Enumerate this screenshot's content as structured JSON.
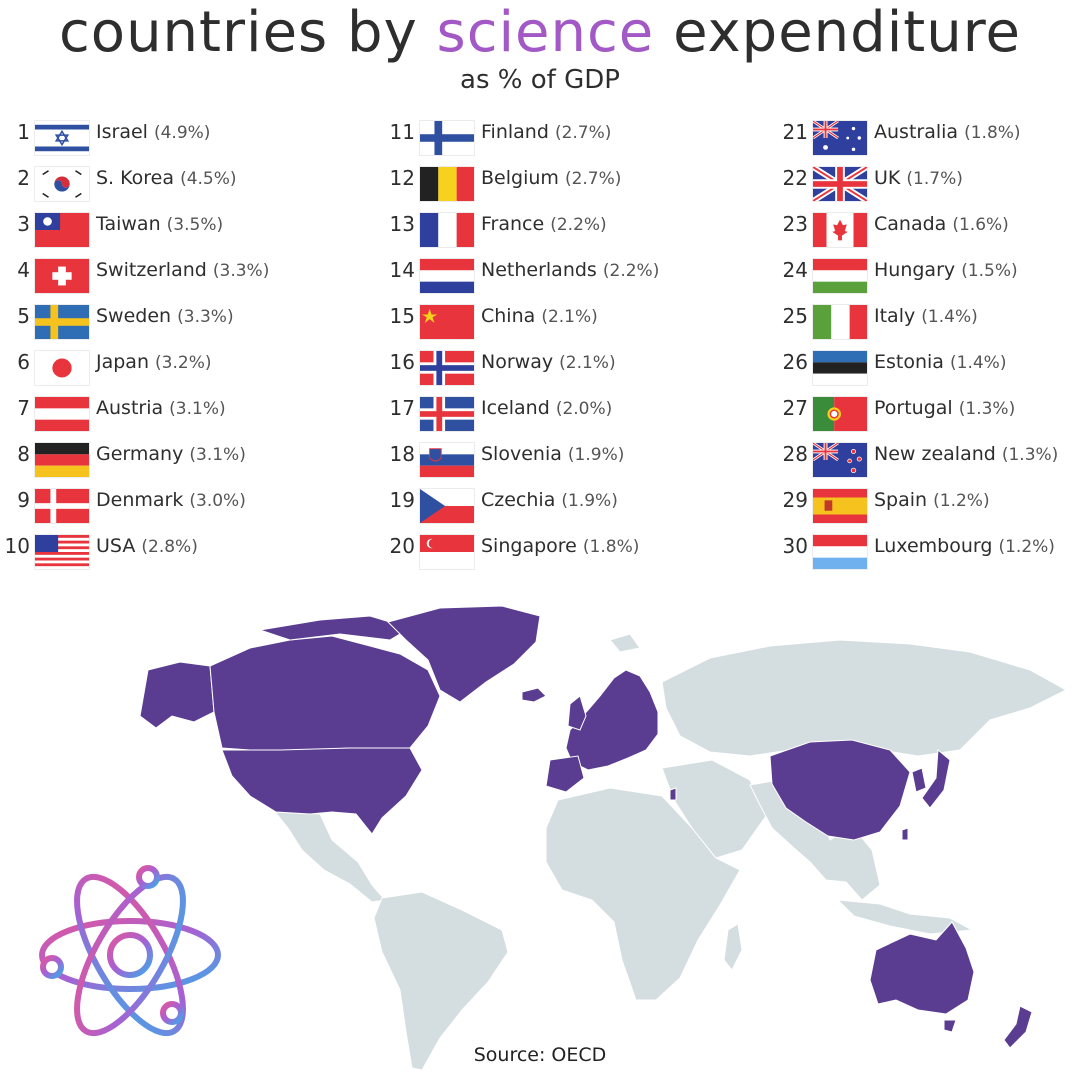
{
  "title": {
    "part1": "countries by",
    "accent": "science",
    "part2": "expenditure"
  },
  "subtitle": "as % of GDP",
  "source": "Source: OECD",
  "colors": {
    "accent": "#a259c6",
    "highlight": "#5a3d91",
    "land": "#d4dde0"
  },
  "columns": [
    [
      {
        "rank": "1",
        "country": "Israel",
        "pct": "(4.9%)",
        "flag": "israel"
      },
      {
        "rank": "2",
        "country": "S. Korea",
        "pct": "(4.5%)",
        "flag": "korea"
      },
      {
        "rank": "3",
        "country": "Taiwan",
        "pct": "(3.5%)",
        "flag": "taiwan"
      },
      {
        "rank": "4",
        "country": "Switzerland",
        "pct": "(3.3%)",
        "flag": "switzerland"
      },
      {
        "rank": "5",
        "country": "Sweden",
        "pct": "(3.3%)",
        "flag": "sweden"
      },
      {
        "rank": "6",
        "country": "Japan",
        "pct": "(3.2%)",
        "flag": "japan"
      },
      {
        "rank": "7",
        "country": "Austria",
        "pct": "(3.1%)",
        "flag": "austria"
      },
      {
        "rank": "8",
        "country": "Germany",
        "pct": "(3.1%)",
        "flag": "germany"
      },
      {
        "rank": "9",
        "country": "Denmark",
        "pct": "(3.0%)",
        "flag": "denmark"
      },
      {
        "rank": "10",
        "country": "USA",
        "pct": "(2.8%)",
        "flag": "usa"
      }
    ],
    [
      {
        "rank": "11",
        "country": "Finland",
        "pct": "(2.7%)",
        "flag": "finland"
      },
      {
        "rank": "12",
        "country": "Belgium",
        "pct": "(2.7%)",
        "flag": "belgium"
      },
      {
        "rank": "13",
        "country": "France",
        "pct": "(2.2%)",
        "flag": "france"
      },
      {
        "rank": "14",
        "country": "Netherlands",
        "pct": "(2.2%)",
        "flag": "netherlands"
      },
      {
        "rank": "15",
        "country": "China",
        "pct": "(2.1%)",
        "flag": "china"
      },
      {
        "rank": "16",
        "country": "Norway",
        "pct": "(2.1%)",
        "flag": "norway"
      },
      {
        "rank": "17",
        "country": "Iceland",
        "pct": "(2.0%)",
        "flag": "iceland"
      },
      {
        "rank": "18",
        "country": "Slovenia",
        "pct": "(1.9%)",
        "flag": "slovenia"
      },
      {
        "rank": "19",
        "country": "Czechia",
        "pct": "(1.9%)",
        "flag": "czechia"
      },
      {
        "rank": "20",
        "country": "Singapore",
        "pct": "(1.8%)",
        "flag": "singapore"
      }
    ],
    [
      {
        "rank": "21",
        "country": "Australia",
        "pct": "(1.8%)",
        "flag": "australia"
      },
      {
        "rank": "22",
        "country": "UK",
        "pct": "(1.7%)",
        "flag": "uk"
      },
      {
        "rank": "23",
        "country": "Canada",
        "pct": "(1.6%)",
        "flag": "canada"
      },
      {
        "rank": "24",
        "country": "Hungary",
        "pct": "(1.5%)",
        "flag": "hungary"
      },
      {
        "rank": "25",
        "country": "Italy",
        "pct": "(1.4%)",
        "flag": "italy"
      },
      {
        "rank": "26",
        "country": "Estonia",
        "pct": "(1.4%)",
        "flag": "estonia"
      },
      {
        "rank": "27",
        "country": "Portugal",
        "pct": "(1.3%)",
        "flag": "portugal"
      },
      {
        "rank": "28",
        "country": "New zealand",
        "pct": "(1.3%)",
        "flag": "newzealand"
      },
      {
        "rank": "29",
        "country": "Spain",
        "pct": "(1.2%)",
        "flag": "spain"
      },
      {
        "rank": "30",
        "country": "Luxembourg",
        "pct": "(1.2%)",
        "flag": "luxembourg"
      }
    ]
  ]
}
